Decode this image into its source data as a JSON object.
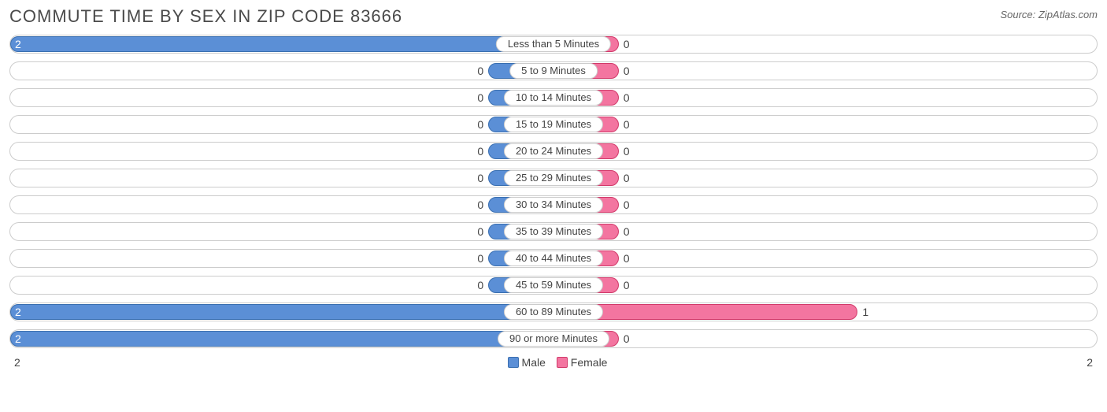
{
  "header": {
    "title": "Commute Time by Sex in Zip Code 83666",
    "source": "Source: ZipAtlas.com"
  },
  "chart": {
    "type": "bidirectional-bar",
    "male_color": "#5b8fd6",
    "male_border": "#3a6fb0",
    "female_color": "#f375a0",
    "female_border": "#d13a6a",
    "row_border_color": "#cccccc",
    "background_color": "#ffffff",
    "text_color": "#444444",
    "max_value": 2,
    "min_bar_pct": 12,
    "axis_left": "2",
    "axis_right": "2",
    "rows": [
      {
        "category": "Less than 5 Minutes",
        "male": 2,
        "female": 0
      },
      {
        "category": "5 to 9 Minutes",
        "male": 0,
        "female": 0
      },
      {
        "category": "10 to 14 Minutes",
        "male": 0,
        "female": 0
      },
      {
        "category": "15 to 19 Minutes",
        "male": 0,
        "female": 0
      },
      {
        "category": "20 to 24 Minutes",
        "male": 0,
        "female": 0
      },
      {
        "category": "25 to 29 Minutes",
        "male": 0,
        "female": 0
      },
      {
        "category": "30 to 34 Minutes",
        "male": 0,
        "female": 0
      },
      {
        "category": "35 to 39 Minutes",
        "male": 0,
        "female": 0
      },
      {
        "category": "40 to 44 Minutes",
        "male": 0,
        "female": 0
      },
      {
        "category": "45 to 59 Minutes",
        "male": 0,
        "female": 0
      },
      {
        "category": "60 to 89 Minutes",
        "male": 2,
        "female": 1
      },
      {
        "category": "90 or more Minutes",
        "male": 2,
        "female": 0
      }
    ]
  },
  "legend": {
    "male_label": "Male",
    "female_label": "Female"
  }
}
